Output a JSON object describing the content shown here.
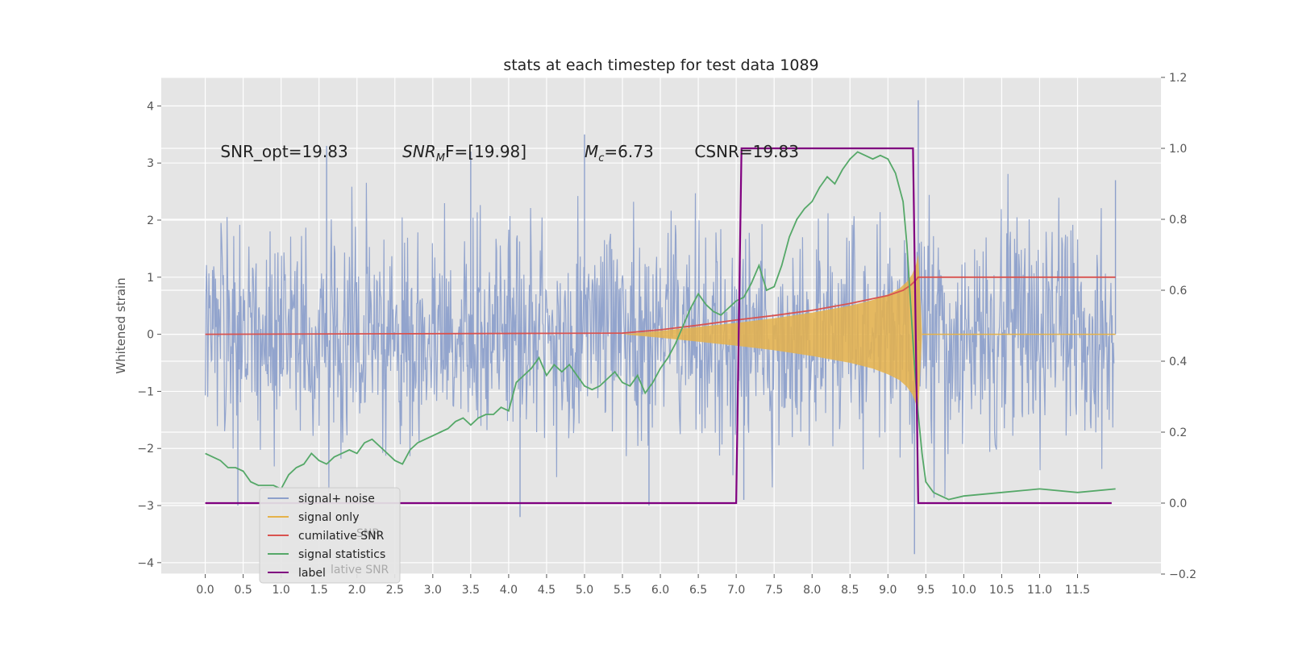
{
  "chart_data": {
    "type": "line",
    "title": "stats at each timestep for test data 1089",
    "xlabel": "",
    "ylabel": "Whitened strain",
    "xlim": [
      -0.58,
      12.6
    ],
    "ylim": [
      -4.2,
      4.5
    ],
    "y2lim": [
      -0.2,
      1.2
    ],
    "grid": true,
    "x_ticks": [
      "0.0",
      "0.5",
      "1.0",
      "1.5",
      "2.0",
      "2.5",
      "3.0",
      "3.5",
      "4.0",
      "4.5",
      "5.0",
      "5.5",
      "6.0",
      "6.5",
      "7.0",
      "7.5",
      "8.0",
      "8.5",
      "9.0",
      "9.5",
      "10.0",
      "10.5",
      "11.0",
      "11.5"
    ],
    "y_ticks": [
      "4",
      "3",
      "2",
      "1",
      "0",
      "−1",
      "−2",
      "−3",
      "−4"
    ],
    "y2_ticks": [
      "1.2",
      "1.0",
      "0.8",
      "0.6",
      "0.4",
      "0.2",
      "0.0",
      "−0.2"
    ],
    "legend_position": "lower-left",
    "annotations": [
      {
        "text": "SNR_opt=19.83",
        "x": 0.2,
        "y": 3.2
      },
      {
        "text": "SNR",
        "sub": "M",
        "suffix": "F=[19.98]",
        "x": 2.6,
        "y": 3.2
      },
      {
        "text": "M",
        "sub": "c",
        "suffix": "=6.73",
        "x": 5.0,
        "y": 3.2
      },
      {
        "text": "CSNR=19.83",
        "x": 6.45,
        "y": 3.2
      }
    ],
    "series": [
      {
        "name": "signal+ noise",
        "color": "#8da0cb",
        "axis": "left",
        "t_end": 11.98,
        "noise_band": 1.25,
        "noise_peak": 3.0,
        "outliers": [
          [
            0.43,
            -3.0
          ],
          [
            1.6,
            3.3
          ],
          [
            3.5,
            3.2
          ],
          [
            4.15,
            -3.2
          ],
          [
            5.0,
            3.5
          ],
          [
            5.85,
            -3.0
          ],
          [
            7.1,
            -2.9
          ],
          [
            9.35,
            -3.85
          ],
          [
            9.4,
            4.1
          ],
          [
            12.0,
            2.7
          ]
        ]
      },
      {
        "name": "signal only",
        "color": "#e5b24a",
        "axis": "left",
        "envelope": [
          [
            5.5,
            0.0
          ],
          [
            6.0,
            0.06
          ],
          [
            6.5,
            0.13
          ],
          [
            7.0,
            0.2
          ],
          [
            7.5,
            0.28
          ],
          [
            8.0,
            0.38
          ],
          [
            8.5,
            0.5
          ],
          [
            8.8,
            0.6
          ],
          [
            9.0,
            0.7
          ],
          [
            9.15,
            0.8
          ],
          [
            9.25,
            0.92
          ],
          [
            9.32,
            1.05
          ],
          [
            9.37,
            1.22
          ],
          [
            9.4,
            1.4
          ],
          [
            9.45,
            0.0
          ],
          [
            12.0,
            0.0
          ]
        ]
      },
      {
        "name": "cumilative SNR",
        "color": "#d9534f",
        "axis": "left",
        "x": [
          0.0,
          5.5,
          6.0,
          6.5,
          7.0,
          7.5,
          8.0,
          8.5,
          9.0,
          9.2,
          9.3,
          9.37,
          9.4,
          12.0
        ],
        "y": [
          0.0,
          0.02,
          0.08,
          0.16,
          0.25,
          0.33,
          0.42,
          0.54,
          0.68,
          0.77,
          0.86,
          0.95,
          1.0,
          1.0
        ]
      },
      {
        "name": "signal statistics",
        "color": "#55a868",
        "axis": "right",
        "x": [
          0.0,
          0.1,
          0.2,
          0.3,
          0.4,
          0.5,
          0.6,
          0.7,
          0.8,
          0.9,
          1.0,
          1.1,
          1.2,
          1.3,
          1.4,
          1.5,
          1.6,
          1.7,
          1.8,
          1.9,
          2.0,
          2.1,
          2.2,
          2.3,
          2.4,
          2.5,
          2.6,
          2.7,
          2.8,
          2.9,
          3.0,
          3.1,
          3.2,
          3.3,
          3.4,
          3.5,
          3.6,
          3.7,
          3.8,
          3.9,
          4.0,
          4.1,
          4.2,
          4.3,
          4.4,
          4.5,
          4.6,
          4.7,
          4.8,
          4.9,
          5.0,
          5.1,
          5.2,
          5.3,
          5.4,
          5.5,
          5.6,
          5.7,
          5.8,
          5.9,
          6.0,
          6.1,
          6.2,
          6.3,
          6.4,
          6.5,
          6.6,
          6.7,
          6.8,
          6.9,
          7.0,
          7.1,
          7.2,
          7.3,
          7.4,
          7.5,
          7.6,
          7.7,
          7.8,
          7.9,
          8.0,
          8.1,
          8.2,
          8.3,
          8.4,
          8.5,
          8.6,
          8.7,
          8.8,
          8.9,
          9.0,
          9.1,
          9.2,
          9.25,
          9.3,
          9.35,
          9.4,
          9.45,
          9.5,
          9.6,
          9.7,
          9.8,
          10.0,
          10.5,
          11.0,
          11.5,
          12.0
        ],
        "y": [
          0.14,
          0.13,
          0.12,
          0.1,
          0.1,
          0.09,
          0.06,
          0.05,
          0.05,
          0.05,
          0.04,
          0.08,
          0.1,
          0.11,
          0.14,
          0.12,
          0.11,
          0.13,
          0.14,
          0.15,
          0.14,
          0.17,
          0.18,
          0.16,
          0.14,
          0.12,
          0.11,
          0.15,
          0.17,
          0.18,
          0.19,
          0.2,
          0.21,
          0.23,
          0.24,
          0.22,
          0.24,
          0.25,
          0.25,
          0.27,
          0.26,
          0.34,
          0.36,
          0.38,
          0.41,
          0.36,
          0.39,
          0.37,
          0.39,
          0.36,
          0.33,
          0.32,
          0.33,
          0.35,
          0.37,
          0.34,
          0.33,
          0.36,
          0.31,
          0.34,
          0.38,
          0.41,
          0.45,
          0.5,
          0.55,
          0.59,
          0.56,
          0.54,
          0.53,
          0.55,
          0.57,
          0.58,
          0.62,
          0.67,
          0.6,
          0.61,
          0.67,
          0.75,
          0.8,
          0.83,
          0.85,
          0.89,
          0.92,
          0.9,
          0.94,
          0.97,
          0.99,
          0.98,
          0.97,
          0.98,
          0.97,
          0.93,
          0.85,
          0.73,
          0.56,
          0.39,
          0.25,
          0.14,
          0.06,
          0.03,
          0.02,
          0.01,
          0.02,
          0.03,
          0.04,
          0.03,
          0.04
        ]
      },
      {
        "name": "label",
        "color": "#800080",
        "axis": "right",
        "x": [
          0.0,
          7.0,
          7.07,
          9.33,
          9.4,
          11.95
        ],
        "y": [
          0.0,
          0.0,
          1.0,
          1.0,
          0.0,
          0.0
        ]
      }
    ],
    "legend_ghost_text": "lative SNR",
    "legend_ghost_text_2": "SNR"
  }
}
